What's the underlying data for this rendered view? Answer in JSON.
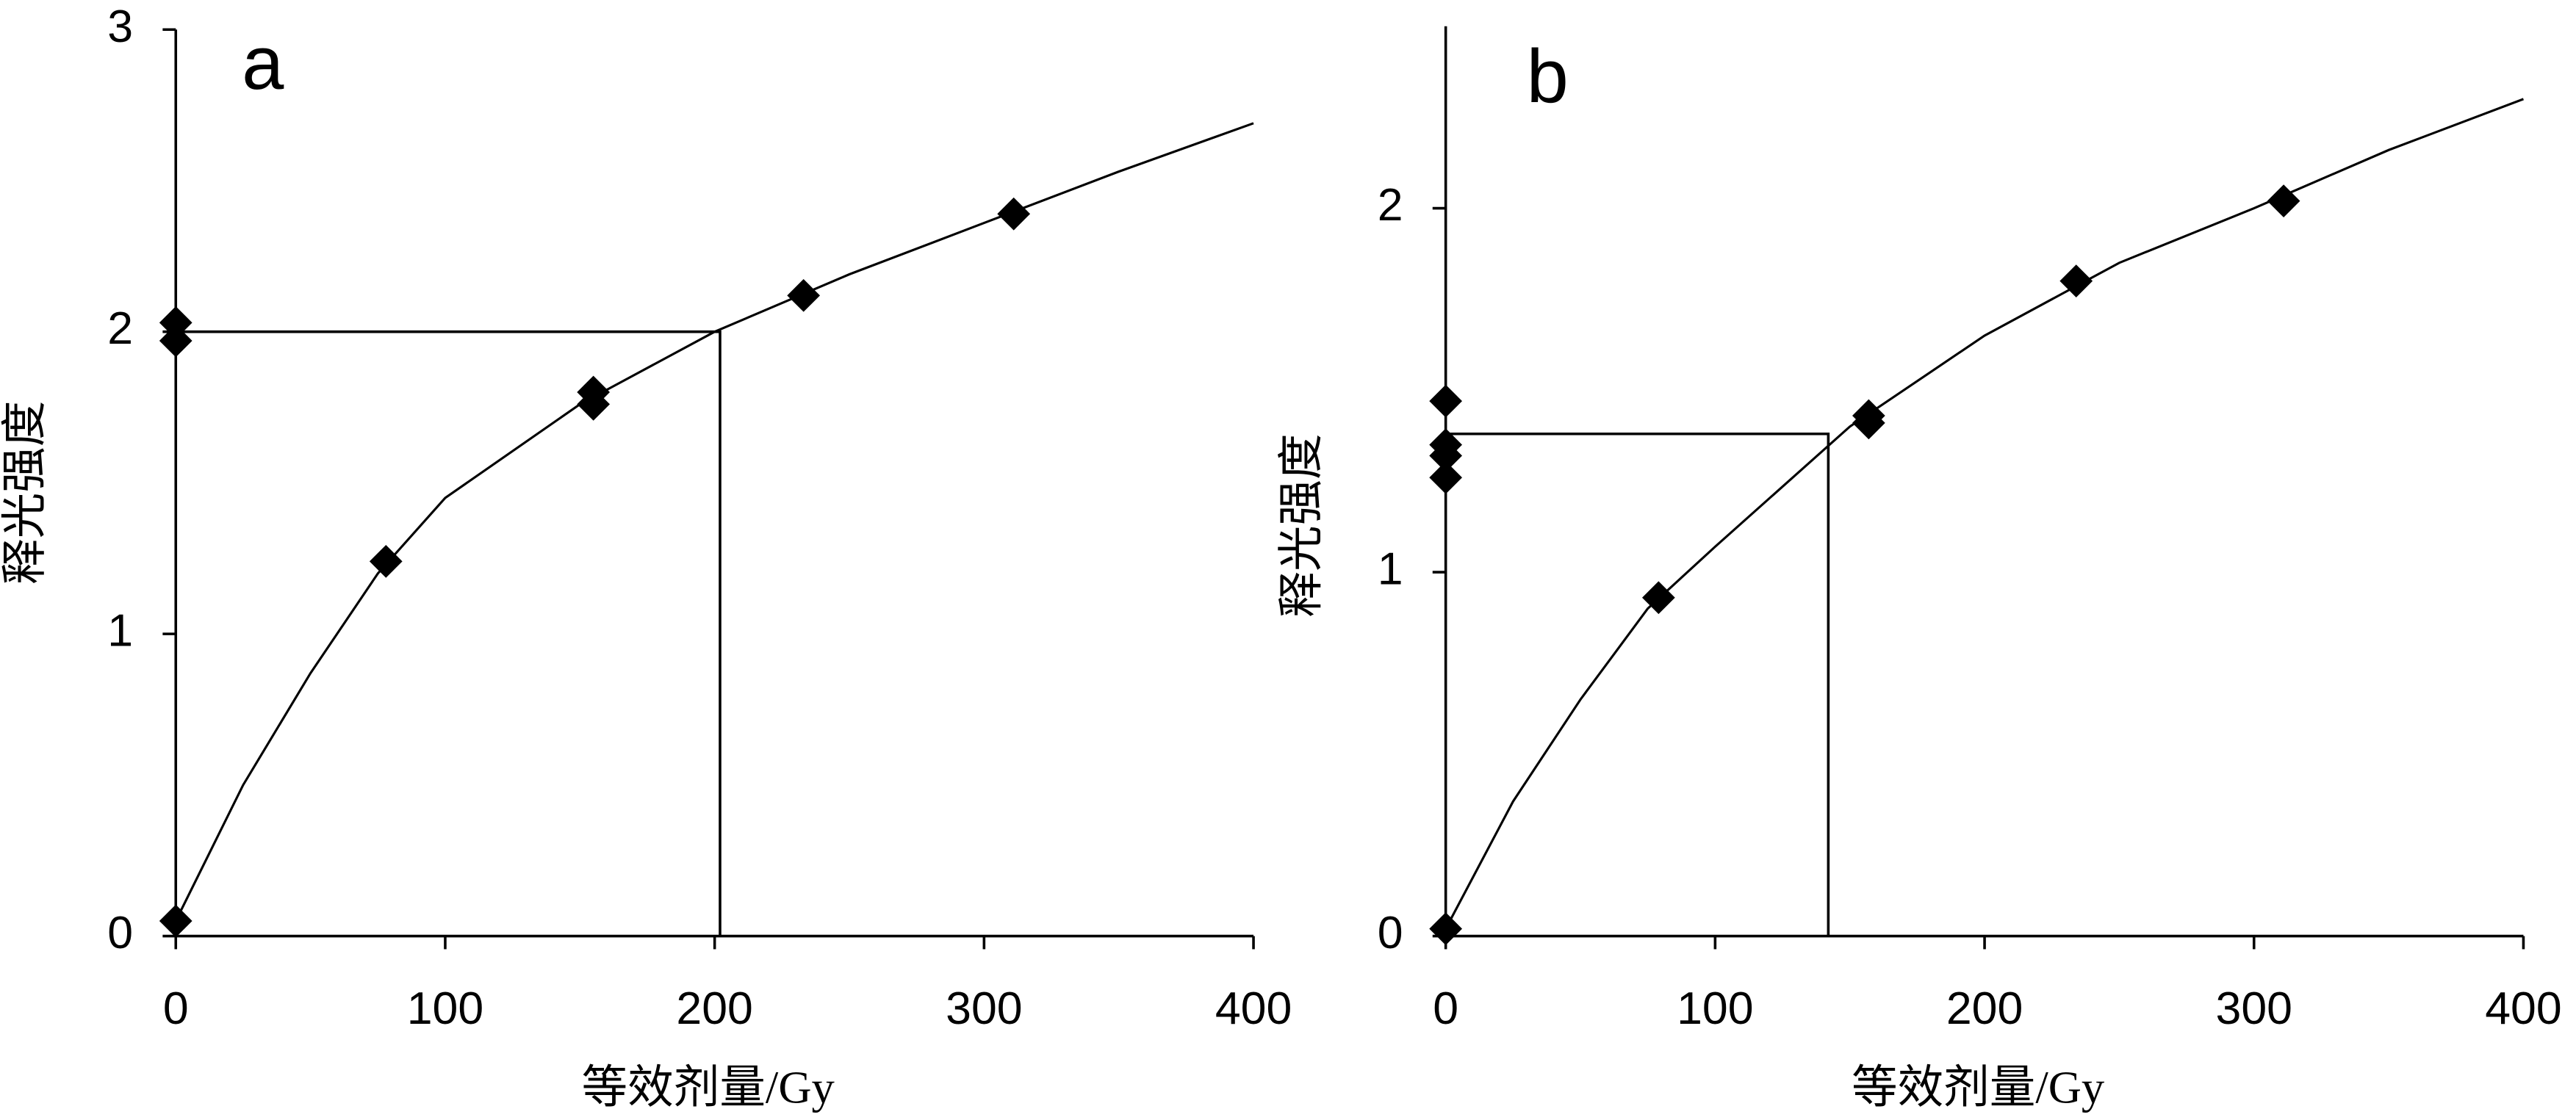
{
  "chart_data": [
    {
      "type": "scatter",
      "panel_label": "a",
      "y_label": "释光强度",
      "x_label": "等效剂量/Gy",
      "color": "#000000",
      "x": [
        0,
        0,
        0,
        78,
        155,
        155,
        233,
        311
      ],
      "values": [
        0.05,
        2.03,
        1.97,
        1.24,
        1.8,
        1.76,
        2.12,
        2.39
      ],
      "curve": {
        "x": [
          0,
          25,
          50,
          75,
          100,
          150,
          200,
          250,
          300,
          350,
          400
        ],
        "values": [
          0.05,
          0.5,
          0.87,
          1.2,
          1.45,
          1.76,
          2.0,
          2.19,
          2.36,
          2.53,
          2.69
        ]
      },
      "reference": {
        "x": 202,
        "y": 2
      },
      "xlim": [
        0,
        400
      ],
      "xticks": [
        0,
        100,
        200,
        300,
        400
      ],
      "ylim": [
        0,
        3
      ],
      "yticks": [
        0,
        1,
        2,
        3
      ]
    },
    {
      "type": "scatter",
      "panel_label": "b",
      "y_label": "释光强度",
      "x_label": "等效剂量/Gy",
      "color": "#000000",
      "x": [
        0,
        0,
        0,
        0,
        0,
        79,
        157,
        157,
        234,
        311
      ],
      "values": [
        0.02,
        1.47,
        1.35,
        1.32,
        1.26,
        0.93,
        1.43,
        1.41,
        1.8,
        2.02
      ],
      "curve": {
        "x": [
          0,
          25,
          50,
          75,
          100,
          150,
          200,
          250,
          300,
          350,
          400
        ],
        "values": [
          0.02,
          0.37,
          0.65,
          0.9,
          1.07,
          1.4,
          1.65,
          1.85,
          2.0,
          2.16,
          2.3
        ]
      },
      "reference": {
        "x": 142,
        "y": 1.38
      },
      "xlim": [
        0,
        400
      ],
      "xticks": [
        0,
        100,
        200,
        300,
        400
      ],
      "ylim": [
        0,
        2.5
      ],
      "yticks": [
        0,
        1,
        2
      ]
    }
  ]
}
